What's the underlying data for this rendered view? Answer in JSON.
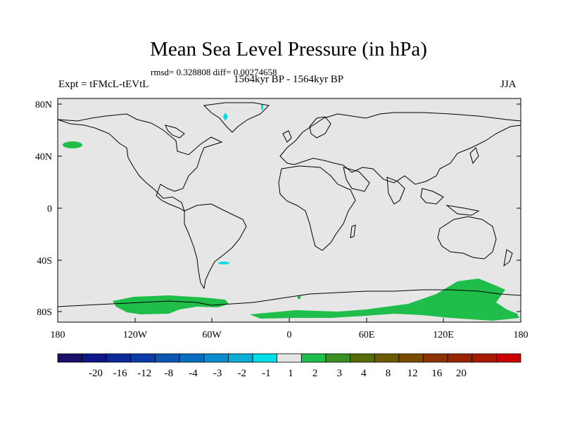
{
  "title": "Mean Sea Level Pressure (in hPa)",
  "stats": "rmsd= 0.328808 diff= 0.00274658",
  "subtitle": "1564kyr BP - 1564kyr BP",
  "left_label": "Expt = tFMcL-tEVtL",
  "right_label": "JJA",
  "latitude_labels": [
    "80N",
    "40N",
    "0",
    "40S",
    "80S"
  ],
  "longitude_labels": [
    "180",
    "120W",
    "60W",
    "0",
    "60E",
    "120E",
    "180"
  ],
  "colors": {
    "background_field": "#e6e6e6",
    "positive_1_2": "#1fbd4a",
    "negative_1_2": "#00dde5",
    "coastline": "#000000"
  },
  "colorbar": {
    "labels": [
      "-20",
      "-16",
      "-12",
      "-8",
      "-4",
      "-3",
      "-2",
      "-1",
      "1",
      "2",
      "3",
      "4",
      "8",
      "12",
      "16",
      "20"
    ],
    "colors": [
      "#1a0f66",
      "#0d1785",
      "#0a2a99",
      "#0a3da8",
      "#0d55b3",
      "#0a6ec0",
      "#0a8ccf",
      "#0aaed8",
      "#00dde5",
      "#e6e6e6",
      "#1fbd4a",
      "#3a8f22",
      "#566b0a",
      "#6b5a00",
      "#7a4a00",
      "#8a3300",
      "#9a2400",
      "#a81a00",
      "#cc0000"
    ]
  }
}
